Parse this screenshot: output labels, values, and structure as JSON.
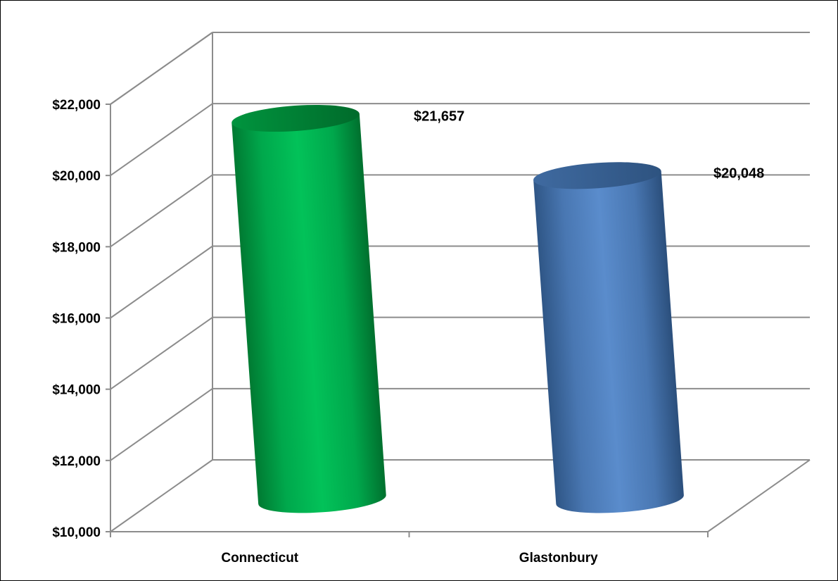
{
  "chart_data": {
    "type": "bar",
    "style": "3d-cylinder",
    "categories": [
      "Connecticut",
      "Glastonbury"
    ],
    "values": [
      21657,
      20048
    ],
    "data_labels": [
      "$21,657",
      "$20,048"
    ],
    "colors": [
      "#00b050",
      "#4f81bd"
    ],
    "ylim": [
      10000,
      22000
    ],
    "yticks": [
      10000,
      12000,
      14000,
      16000,
      18000,
      20000,
      22000
    ],
    "ytick_labels": [
      "$10,000",
      "$12,000",
      "$14,000",
      "$16,000",
      "$18,000",
      "$20,000",
      "$22,000"
    ],
    "grid": true,
    "legend": "none"
  }
}
